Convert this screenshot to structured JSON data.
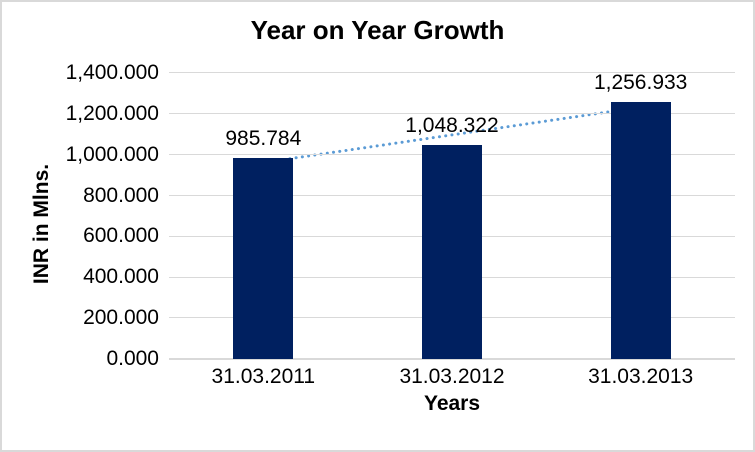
{
  "window": {
    "background_color": "#ffffff",
    "border_color": "#d9d9d9"
  },
  "chart_data": {
    "type": "bar",
    "title": "Year on Year Growth",
    "xlabel": "Years",
    "ylabel": "INR in Mlns.",
    "categories": [
      "31.03.2011",
      "31.03.2012",
      "31.03.2013"
    ],
    "values": [
      985.784,
      1048.322,
      1256.933
    ],
    "data_labels": [
      "985.784",
      "1,048.322",
      "1,256.933"
    ],
    "ylim": [
      0,
      1400
    ],
    "y_tick_step": 200,
    "y_tick_labels": [
      "0.000",
      "200.000",
      "400.000",
      "600.000",
      "800.000",
      "1,000.000",
      "1,200.000",
      "1,400.000"
    ],
    "grid": true,
    "legend": "none",
    "bar_color": "#002060",
    "gridline_color": "#d9d9d9",
    "axis_line_color": "#d9d9d9",
    "text_color": "#000000",
    "trendline": {
      "type": "linear",
      "style": "dotted",
      "color": "#5b9bd5"
    }
  }
}
